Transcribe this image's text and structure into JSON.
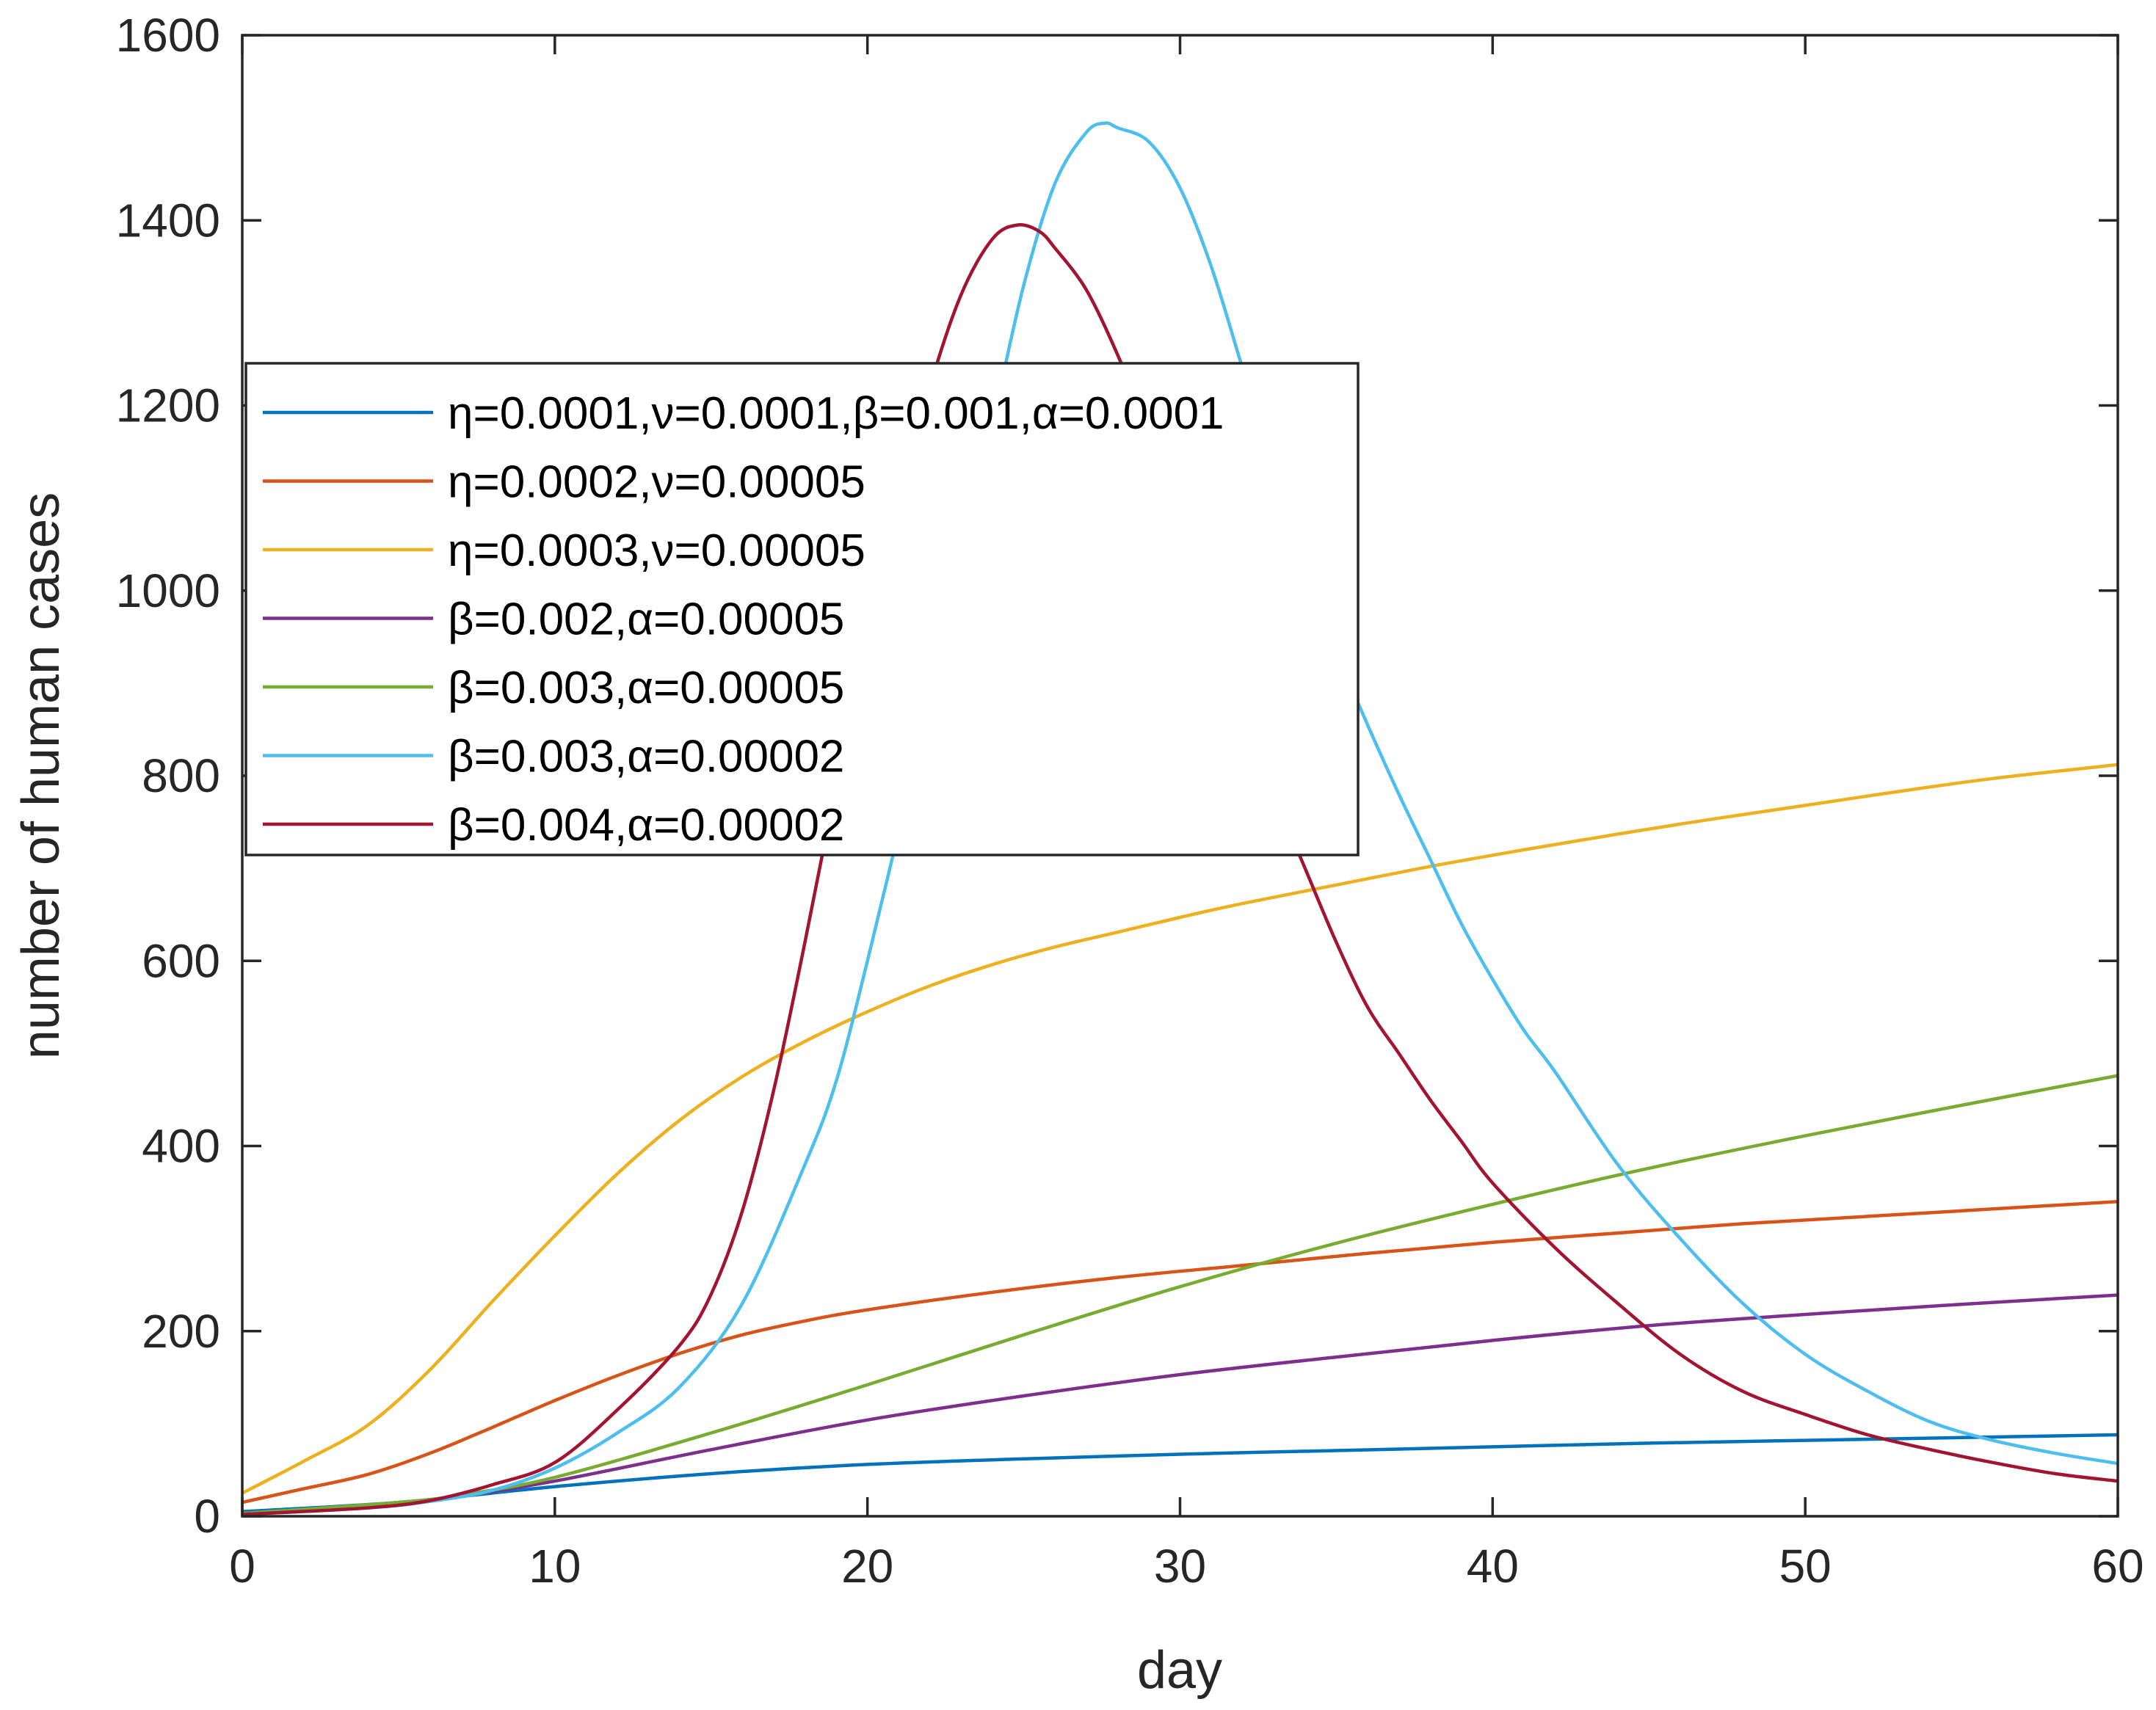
{
  "chart_data": {
    "type": "line",
    "title": "",
    "xlabel": "day",
    "ylabel": "number of human cases",
    "xlim": [
      0,
      60
    ],
    "ylim": [
      0,
      1600
    ],
    "xticks": [
      "0",
      "10",
      "20",
      "30",
      "40",
      "50",
      "60"
    ],
    "yticks": [
      "0",
      "200",
      "400",
      "600",
      "800",
      "1000",
      "1200",
      "1400",
      "1600"
    ],
    "grid": false,
    "legend_position": "upper-left",
    "x": [
      0,
      5,
      10,
      15,
      20,
      25,
      30,
      35,
      40,
      45,
      50,
      55,
      60
    ],
    "series": [
      {
        "name": "η=0.0001,ν=0.0001,β=0.001,α=0.0001",
        "color": "#0072BD",
        "points": [
          [
            0,
            5
          ],
          [
            5,
            15
          ],
          [
            10,
            32
          ],
          [
            15,
            46
          ],
          [
            20,
            56
          ],
          [
            25,
            62
          ],
          [
            30,
            67
          ],
          [
            35,
            71
          ],
          [
            40,
            75
          ],
          [
            45,
            79
          ],
          [
            50,
            82
          ],
          [
            55,
            85
          ],
          [
            60,
            88
          ]
        ]
      },
      {
        "name": "η=0.0002,ν=0.00005",
        "color": "#D95319",
        "points": [
          [
            0,
            15
          ],
          [
            2,
            30
          ],
          [
            4,
            45
          ],
          [
            6,
            68
          ],
          [
            8,
            96
          ],
          [
            10,
            125
          ],
          [
            12,
            152
          ],
          [
            14,
            176
          ],
          [
            16,
            196
          ],
          [
            18,
            211
          ],
          [
            20,
            223
          ],
          [
            24,
            242
          ],
          [
            28,
            258
          ],
          [
            32,
            271
          ],
          [
            36,
            284
          ],
          [
            40,
            296
          ],
          [
            44,
            306
          ],
          [
            48,
            316
          ],
          [
            52,
            324
          ],
          [
            56,
            332
          ],
          [
            60,
            340
          ]
        ]
      },
      {
        "name": "η=0.0003,ν=0.00005",
        "color": "#EDB120",
        "points": [
          [
            0,
            25
          ],
          [
            2,
            60
          ],
          [
            4,
            98
          ],
          [
            6,
            158
          ],
          [
            8,
            232
          ],
          [
            10,
            303
          ],
          [
            12,
            370
          ],
          [
            14,
            428
          ],
          [
            16,
            475
          ],
          [
            18,
            513
          ],
          [
            20,
            545
          ],
          [
            22,
            573
          ],
          [
            24,
            596
          ],
          [
            26,
            615
          ],
          [
            28,
            631
          ],
          [
            30,
            647
          ],
          [
            32,
            662
          ],
          [
            35,
            682
          ],
          [
            38,
            702
          ],
          [
            41,
            720
          ],
          [
            44,
            737
          ],
          [
            47,
            753
          ],
          [
            50,
            768
          ],
          [
            53,
            783
          ],
          [
            56,
            797
          ],
          [
            60,
            812
          ]
        ]
      },
      {
        "name": "β=0.002,α=0.00005",
        "color": "#7E2F8E",
        "points": [
          [
            0,
            3
          ],
          [
            5,
            14
          ],
          [
            7,
            22
          ],
          [
            10,
            38
          ],
          [
            15,
            72
          ],
          [
            20,
            104
          ],
          [
            25,
            130
          ],
          [
            30,
            153
          ],
          [
            35,
            172
          ],
          [
            40,
            190
          ],
          [
            45,
            206
          ],
          [
            50,
            218
          ],
          [
            55,
            229
          ],
          [
            60,
            239
          ]
        ]
      },
      {
        "name": "β=0.003,α=0.00005",
        "color": "#77AC30",
        "points": [
          [
            0,
            3
          ],
          [
            5,
            15
          ],
          [
            7,
            23
          ],
          [
            10,
            42
          ],
          [
            15,
            90
          ],
          [
            20,
            142
          ],
          [
            25,
            196
          ],
          [
            30,
            248
          ],
          [
            35,
            295
          ],
          [
            40,
            337
          ],
          [
            45,
            376
          ],
          [
            50,
            411
          ],
          [
            55,
            444
          ],
          [
            60,
            476
          ]
        ]
      },
      {
        "name": "β=0.003,α=0.00002",
        "color": "#4DBEEE",
        "points": [
          [
            0,
            2
          ],
          [
            4,
            9
          ],
          [
            6,
            16
          ],
          [
            8,
            28
          ],
          [
            10,
            52
          ],
          [
            12,
            90
          ],
          [
            14,
            140
          ],
          [
            16,
            230
          ],
          [
            18,
            380
          ],
          [
            19,
            470
          ],
          [
            20,
            600
          ],
          [
            21,
            740
          ],
          [
            22,
            880
          ],
          [
            23,
            1030
          ],
          [
            24,
            1180
          ],
          [
            25,
            1330
          ],
          [
            26,
            1440
          ],
          [
            27,
            1495
          ],
          [
            27.6,
            1505
          ],
          [
            28,
            1500
          ],
          [
            29,
            1485
          ],
          [
            30,
            1435
          ],
          [
            31,
            1350
          ],
          [
            32,
            1240
          ],
          [
            33,
            1130
          ],
          [
            34,
            1030
          ],
          [
            35,
            935
          ],
          [
            36,
            855
          ],
          [
            37,
            780
          ],
          [
            38,
            710
          ],
          [
            39,
            640
          ],
          [
            40,
            580
          ],
          [
            41,
            525
          ],
          [
            42,
            480
          ],
          [
            44,
            380
          ],
          [
            46,
            300
          ],
          [
            48,
            230
          ],
          [
            50,
            175
          ],
          [
            52,
            135
          ],
          [
            54,
            102
          ],
          [
            56,
            82
          ],
          [
            58,
            68
          ],
          [
            60,
            57
          ]
        ]
      },
      {
        "name": "β=0.004,α=0.00002",
        "color": "#A2142F",
        "points": [
          [
            0,
            2
          ],
          [
            4,
            9
          ],
          [
            6,
            17
          ],
          [
            8,
            34
          ],
          [
            10,
            58
          ],
          [
            12,
            115
          ],
          [
            14,
            185
          ],
          [
            15,
            240
          ],
          [
            16,
            330
          ],
          [
            17,
            460
          ],
          [
            18,
            620
          ],
          [
            19,
            790
          ],
          [
            20,
            950
          ],
          [
            21,
            1090
          ],
          [
            22,
            1220
          ],
          [
            23,
            1320
          ],
          [
            24,
            1380
          ],
          [
            24.8,
            1395
          ],
          [
            25.5,
            1388
          ],
          [
            26,
            1370
          ],
          [
            27,
            1325
          ],
          [
            28,
            1255
          ],
          [
            29,
            1170
          ],
          [
            30,
            1060
          ],
          [
            31,
            960
          ],
          [
            32,
            870
          ],
          [
            33,
            780
          ],
          [
            34,
            700
          ],
          [
            35,
            620
          ],
          [
            36,
            550
          ],
          [
            37,
            500
          ],
          [
            38,
            450
          ],
          [
            39,
            405
          ],
          [
            40,
            360
          ],
          [
            42,
            290
          ],
          [
            44,
            230
          ],
          [
            46,
            175
          ],
          [
            48,
            135
          ],
          [
            50,
            110
          ],
          [
            52,
            88
          ],
          [
            54,
            72
          ],
          [
            56,
            58
          ],
          [
            58,
            46
          ],
          [
            60,
            38
          ]
        ]
      }
    ]
  }
}
